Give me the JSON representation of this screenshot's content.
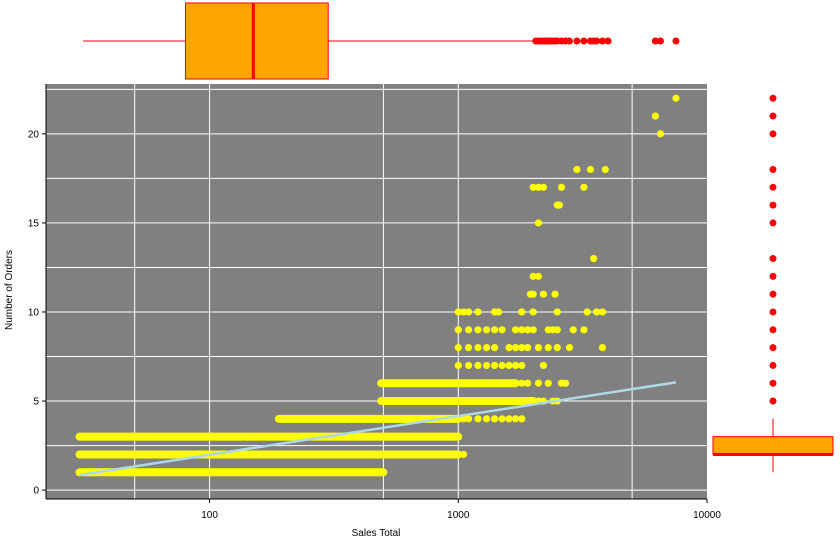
{
  "chart_data": {
    "type": "scatter",
    "title": "",
    "xlabel": "Sales Total",
    "ylabel": "Number of Orders",
    "x_scale": "log",
    "xlim": [
      22,
      10000
    ],
    "ylim": [
      -0.5,
      22.8
    ],
    "x_ticks": [
      100,
      1000,
      10000
    ],
    "x_tick_labels": [
      "100",
      "1000",
      "10000"
    ],
    "y_ticks": [
      0,
      5,
      10,
      15,
      20
    ],
    "y_tick_labels": [
      "0",
      "5",
      "10",
      "15",
      "20"
    ],
    "grid": true,
    "plot_background": "#808080",
    "grid_color": "#ffffff",
    "point_color": "#ffff00",
    "trend_color": "#add8e6",
    "box_fill": "#ffa500",
    "box_edge": "#ff0000",
    "outlier_color": "#ff0000",
    "bands": [
      {
        "y": 1,
        "x_start": 30,
        "x_end": 500
      },
      {
        "y": 2,
        "x_start": 30,
        "x_end": 1000
      },
      {
        "y": 3,
        "x_start": 30,
        "x_end": 1000
      },
      {
        "y": 4,
        "x_start": 190,
        "x_end": 1000
      },
      {
        "y": 5,
        "x_start": 490,
        "x_end": 2000
      },
      {
        "y": 6,
        "x_start": 490,
        "x_end": 1700
      }
    ],
    "points": [
      [
        32,
        1
      ],
      [
        35,
        1
      ],
      [
        40,
        1
      ],
      [
        45,
        1
      ],
      [
        50,
        1
      ],
      [
        31,
        2
      ],
      [
        34,
        2
      ],
      [
        38,
        2
      ],
      [
        1050,
        2
      ],
      [
        1000,
        2
      ],
      [
        960,
        2
      ],
      [
        900,
        2
      ],
      [
        31,
        3
      ],
      [
        34,
        3
      ],
      [
        38,
        3
      ],
      [
        60,
        3
      ],
      [
        80,
        3
      ],
      [
        1050,
        4
      ],
      [
        1100,
        4
      ],
      [
        1200,
        4
      ],
      [
        1300,
        4
      ],
      [
        1400,
        4
      ],
      [
        1500,
        4
      ],
      [
        1600,
        4
      ],
      [
        1700,
        4
      ],
      [
        1800,
        4
      ],
      [
        1000,
        5
      ],
      [
        1100,
        5
      ],
      [
        1300,
        5
      ],
      [
        1500,
        5
      ],
      [
        1700,
        5
      ],
      [
        2100,
        5
      ],
      [
        2200,
        5
      ],
      [
        2400,
        5
      ],
      [
        2500,
        5
      ],
      [
        1800,
        6
      ],
      [
        1900,
        6
      ],
      [
        2100,
        6
      ],
      [
        2300,
        6
      ],
      [
        2600,
        6
      ],
      [
        2700,
        6
      ],
      [
        1000,
        7
      ],
      [
        1100,
        7
      ],
      [
        1200,
        7
      ],
      [
        1300,
        7
      ],
      [
        1400,
        7
      ],
      [
        1500,
        7
      ],
      [
        1600,
        7
      ],
      [
        1700,
        7
      ],
      [
        1800,
        7
      ],
      [
        2200,
        7
      ],
      [
        1000,
        8
      ],
      [
        1100,
        8
      ],
      [
        1200,
        8
      ],
      [
        1300,
        8
      ],
      [
        1400,
        8
      ],
      [
        1600,
        8
      ],
      [
        1700,
        8
      ],
      [
        1800,
        8
      ],
      [
        1900,
        8
      ],
      [
        2100,
        8
      ],
      [
        2300,
        8
      ],
      [
        2500,
        8
      ],
      [
        2800,
        8
      ],
      [
        3800,
        8
      ],
      [
        1000,
        9
      ],
      [
        1100,
        9
      ],
      [
        1200,
        9
      ],
      [
        1300,
        9
      ],
      [
        1400,
        9
      ],
      [
        1500,
        9
      ],
      [
        1700,
        9
      ],
      [
        1800,
        9
      ],
      [
        1900,
        9
      ],
      [
        2000,
        9
      ],
      [
        2300,
        9
      ],
      [
        2400,
        9
      ],
      [
        2500,
        9
      ],
      [
        2900,
        9
      ],
      [
        3200,
        9
      ],
      [
        1000,
        10
      ],
      [
        1050,
        10
      ],
      [
        1100,
        10
      ],
      [
        1200,
        10
      ],
      [
        1400,
        10
      ],
      [
        1450,
        10
      ],
      [
        1800,
        10
      ],
      [
        2000,
        10
      ],
      [
        2500,
        10
      ],
      [
        3300,
        10
      ],
      [
        3600,
        10
      ],
      [
        3800,
        10
      ],
      [
        1950,
        11
      ],
      [
        2000,
        11
      ],
      [
        2200,
        11
      ],
      [
        2450,
        11
      ],
      [
        2000,
        12
      ],
      [
        2100,
        12
      ],
      [
        3500,
        13
      ],
      [
        2500,
        16
      ],
      [
        2550,
        16
      ],
      [
        2000,
        17
      ],
      [
        2100,
        17
      ],
      [
        2200,
        17
      ],
      [
        2600,
        17
      ],
      [
        3200,
        17
      ],
      [
        2100,
        15
      ],
      [
        3000,
        18
      ],
      [
        3400,
        18
      ],
      [
        3900,
        18
      ],
      [
        6500,
        20
      ],
      [
        6200,
        21
      ],
      [
        7500,
        22
      ]
    ],
    "trend_line": [
      [
        30,
        0.85
      ],
      [
        7500,
        6.05
      ]
    ],
    "x_boxplot": {
      "whisker_low": 31,
      "q1": 80,
      "median": 150,
      "q3": 300,
      "whisker_high": 2000,
      "outliers": [
        2050,
        2100,
        2150,
        2200,
        2250,
        2300,
        2350,
        2400,
        2450,
        2500,
        2600,
        2700,
        2800,
        3000,
        3200,
        3400,
        3500,
        3600,
        3800,
        4000,
        6200,
        6500,
        7500
      ]
    },
    "y_boxplot": {
      "whisker_low": 1,
      "q1": 2,
      "median": 2,
      "q3": 3,
      "whisker_high": 4,
      "outliers": [
        5,
        6,
        7,
        8,
        9,
        10,
        11,
        12,
        13,
        15,
        16,
        17,
        18,
        20,
        21,
        22
      ]
    }
  }
}
